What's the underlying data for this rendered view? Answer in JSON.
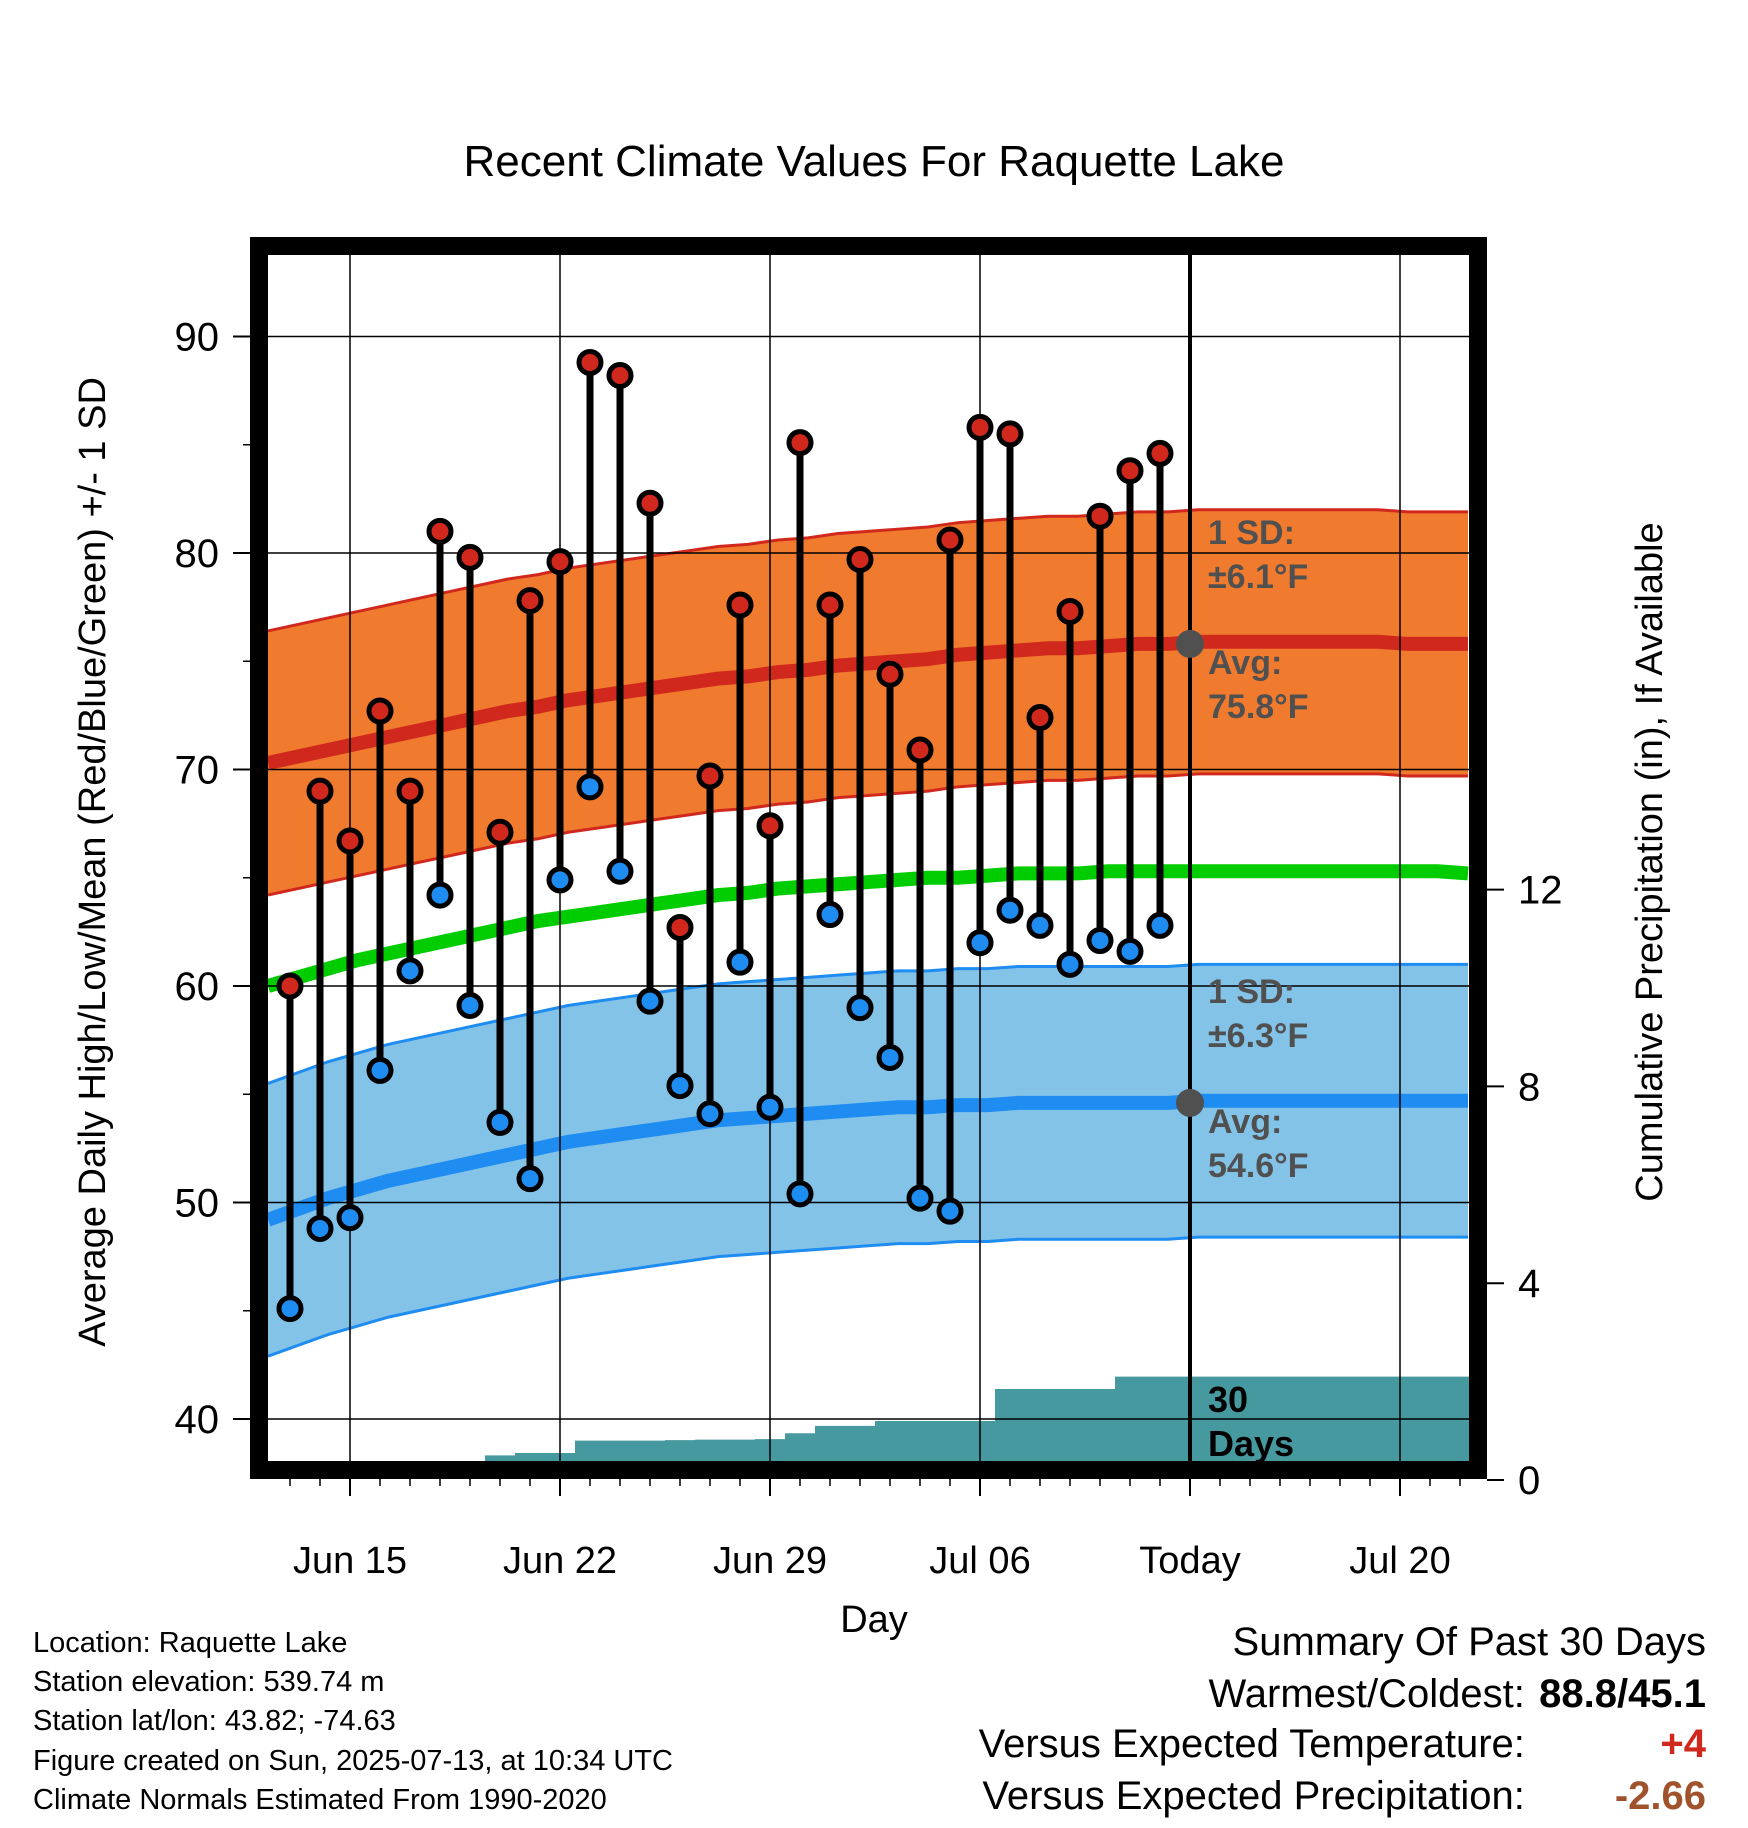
{
  "chart_data": {
    "type": "line",
    "title": "Recent Climate Values For Raquette Lake",
    "xlabel": "Day",
    "ylabel_left": "Average Daily High/Low/Mean (Red/Blue/Green) +/- 1 SD",
    "ylabel_right": "Cumulative Precipitation (in), If Available",
    "x_tick_labels": [
      "Jun 15",
      "Jun 22",
      "Jun 29",
      "Jul 06",
      "Today",
      "Jul 20"
    ],
    "y_ticks_left": [
      "40",
      "50",
      "60",
      "70",
      "80",
      "90"
    ],
    "y_ticks_right": [
      "0",
      "4",
      "8",
      "12"
    ],
    "ylim_left": [
      37.5,
      94
    ],
    "ylim_right": [
      0,
      24
    ],
    "grid": true,
    "daily_high": [
      60.0,
      69.0,
      66.7,
      72.7,
      69.0,
      81.0,
      79.8,
      67.1,
      77.8,
      79.6,
      88.8,
      88.2,
      82.3,
      62.7,
      69.7,
      77.6,
      67.4,
      85.1,
      77.6,
      79.7,
      74.4,
      70.9,
      80.6,
      85.8,
      85.5,
      72.4,
      77.3,
      81.7,
      83.8,
      84.6
    ],
    "daily_low": [
      45.1,
      48.8,
      49.3,
      56.1,
      60.7,
      64.2,
      59.1,
      53.7,
      51.1,
      64.9,
      69.2,
      65.3,
      59.3,
      55.4,
      54.1,
      61.1,
      54.4,
      50.4,
      63.3,
      59.0,
      56.7,
      50.2,
      49.6,
      62.0,
      63.5,
      62.8,
      61.0,
      62.1,
      61.6,
      62.8
    ],
    "normal_high": [
      70.3,
      70.6,
      70.9,
      71.2,
      71.5,
      71.8,
      72.1,
      72.4,
      72.7,
      72.9,
      73.2,
      73.4,
      73.6,
      73.8,
      74.0,
      74.2,
      74.3,
      74.5,
      74.6,
      74.8,
      74.9,
      75.0,
      75.1,
      75.3,
      75.4,
      75.5,
      75.6,
      75.6,
      75.7,
      75.8,
      75.8,
      75.9,
      75.9,
      75.9,
      75.9,
      75.9,
      75.9,
      75.9,
      75.8,
      75.8,
      75.8
    ],
    "normal_high_sd": 6.1,
    "normal_low": [
      49.2,
      49.7,
      50.2,
      50.6,
      51.0,
      51.3,
      51.6,
      51.9,
      52.2,
      52.5,
      52.8,
      53.0,
      53.2,
      53.4,
      53.6,
      53.8,
      53.9,
      54.0,
      54.1,
      54.2,
      54.3,
      54.4,
      54.4,
      54.5,
      54.5,
      54.6,
      54.6,
      54.6,
      54.6,
      54.6,
      54.6,
      54.7,
      54.7,
      54.7,
      54.7,
      54.7,
      54.7,
      54.7,
      54.7,
      54.7,
      54.7
    ],
    "normal_low_sd": 6.3,
    "normal_mean": [
      60.0,
      60.4,
      60.8,
      61.2,
      61.5,
      61.8,
      62.1,
      62.4,
      62.7,
      63.0,
      63.2,
      63.4,
      63.6,
      63.8,
      64.0,
      64.2,
      64.3,
      64.5,
      64.6,
      64.7,
      64.8,
      64.9,
      65.0,
      65.0,
      65.1,
      65.2,
      65.2,
      65.2,
      65.3,
      65.3,
      65.3,
      65.3,
      65.3,
      65.3,
      65.3,
      65.3,
      65.3,
      65.3,
      65.3,
      65.3,
      65.2
    ],
    "cumulative_precip": [
      0.0,
      0.0,
      0.0,
      0.0,
      0.0,
      0.0,
      0.0,
      0.5,
      0.55,
      0.55,
      0.8,
      0.8,
      0.8,
      0.81,
      0.82,
      0.82,
      0.83,
      0.95,
      1.1,
      1.1,
      1.2,
      1.2,
      1.2,
      1.2,
      1.85,
      1.85,
      1.85,
      1.85,
      2.1,
      2.1
    ],
    "sd_label": "1 SD:",
    "high_sd_text": "±6.1°F",
    "low_sd_text": "±6.3°F",
    "avg_label": "Avg:",
    "high_avg_text": "75.8°F",
    "low_avg_text": "54.6°F",
    "precip_label": [
      "30",
      "Days"
    ]
  },
  "meta": {
    "location": "Location: Raquette Lake",
    "elevation": "Station elevation: 539.74 m",
    "latlon": "Station lat/lon: 43.82; -74.63",
    "created": "Figure created on Sun, 2025-07-13, at 10:34 UTC",
    "normals": "Climate Normals Estimated From 1990-2020"
  },
  "summary": {
    "title": "Summary Of Past 30 Days",
    "warm_cold_label": "Warmest/Coldest:",
    "warm_cold_value": "88.8/45.1",
    "temp_label": "Versus Expected Temperature:",
    "temp_value": "+4",
    "precip_label": "Versus Expected Precipitation:",
    "precip_value": "-2.66"
  },
  "colors": {
    "high_band": "#f07b2e",
    "high_band_edge": "#d1281e",
    "high_line": "#d1281e",
    "low_band": "#84c3e8",
    "low_band_edge": "#1e8cf0",
    "low_line": "#1e8cf0",
    "mean_line": "#00cc00",
    "precip_fill": "#46999f",
    "high_dot": "#d1281e",
    "low_dot": "#1e8cf0",
    "avg_marker": "#505050",
    "annotation_text": "#505050",
    "temp_value": "#d1281e",
    "precip_value": "#a0522d"
  }
}
